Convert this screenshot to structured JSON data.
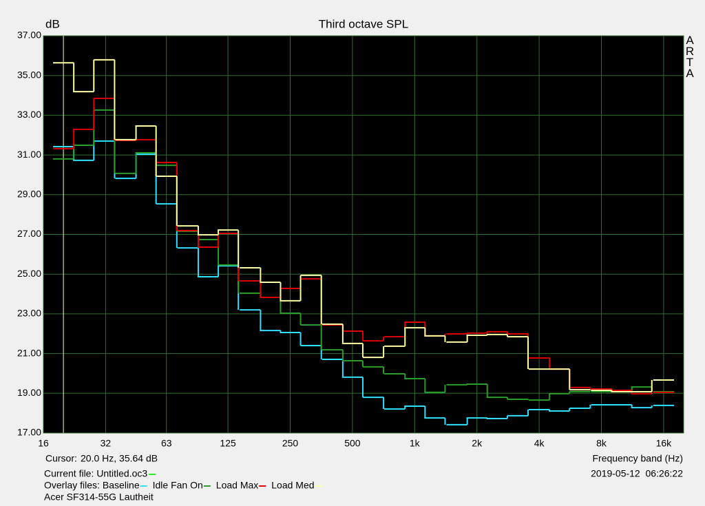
{
  "chart_data": {
    "type": "step",
    "title": "Third octave SPL",
    "y_label": "dB",
    "x_label": "Frequency band (Hz)",
    "side_label": "ARTA",
    "log_x": true,
    "grid": true,
    "xlim": [
      16,
      20000
    ],
    "ylim": [
      17,
      37
    ],
    "xticks": [
      16,
      32,
      63,
      125,
      250,
      500,
      {
        "value": 1000,
        "label": "1k"
      },
      {
        "value": 2000,
        "label": "2k"
      },
      {
        "value": 4000,
        "label": "4k"
      },
      {
        "value": 8000,
        "label": "8k"
      },
      {
        "value": 16000,
        "label": "16k"
      }
    ],
    "yticks": [
      {
        "value": 17,
        "label": "17.00"
      },
      {
        "value": 19,
        "label": "19.00"
      },
      {
        "value": 21,
        "label": "21.00"
      },
      {
        "value": 23,
        "label": "23.00"
      },
      {
        "value": 25,
        "label": "25.00"
      },
      {
        "value": 27,
        "label": "27.00"
      },
      {
        "value": 29,
        "label": "29.00"
      },
      {
        "value": 31,
        "label": "31.00"
      },
      {
        "value": 33,
        "label": "33.00"
      },
      {
        "value": 35,
        "label": "35.00"
      },
      {
        "value": 37,
        "label": "37.00"
      }
    ],
    "x": [
      20,
      25,
      31.5,
      40,
      50,
      63,
      80,
      100,
      125,
      160,
      200,
      250,
      315,
      400,
      500,
      630,
      800,
      1000,
      1250,
      1600,
      2000,
      2500,
      3150,
      4000,
      5000,
      6300,
      8000,
      10000,
      12500,
      16000
    ],
    "series": [
      {
        "name": "Baseline",
        "color": "#2fe0ff",
        "values": [
          31.42,
          30.73,
          31.7,
          29.82,
          31.04,
          28.54,
          26.32,
          24.87,
          25.42,
          23.2,
          22.16,
          22.06,
          21.4,
          20.71,
          19.81,
          18.8,
          18.21,
          18.35,
          17.76,
          17.42,
          17.76,
          17.73,
          17.87,
          18.18,
          18.11,
          18.25,
          18.42,
          18.42,
          18.28,
          18.39
        ]
      },
      {
        "name": "Idle Fan On",
        "color": "#2a9e2a",
        "values": [
          30.8,
          31.49,
          33.26,
          30.07,
          31.11,
          30.48,
          27.16,
          26.74,
          25.46,
          24.04,
          23.83,
          23.03,
          22.44,
          21.19,
          20.64,
          20.33,
          19.98,
          19.74,
          19.05,
          19.43,
          19.46,
          18.8,
          18.7,
          18.66,
          18.98,
          19.08,
          19.08,
          19.08,
          19.32,
          19.08
        ]
      },
      {
        "name": "Load Max",
        "color": "#e00000",
        "values": [
          31.32,
          32.29,
          33.85,
          31.73,
          31.77,
          30.62,
          27.19,
          26.36,
          27.05,
          24.66,
          23.83,
          24.28,
          24.76,
          22.44,
          22.13,
          21.64,
          21.85,
          22.58,
          21.89,
          21.99,
          22.03,
          22.1,
          21.99,
          20.78,
          20.22,
          19.29,
          19.22,
          19.15,
          18.98,
          19.05
        ]
      },
      {
        "name": "Load Med",
        "color": "#ffffa8",
        "values": [
          35.64,
          34.19,
          35.79,
          31.77,
          32.46,
          29.93,
          27.43,
          26.98,
          27.22,
          25.32,
          24.59,
          23.66,
          24.94,
          22.48,
          21.51,
          20.81,
          21.37,
          22.3,
          21.89,
          21.58,
          21.92,
          21.96,
          21.85,
          20.22,
          20.22,
          19.18,
          19.15,
          19.08,
          19.08,
          19.67
        ]
      }
    ],
    "cursor": {
      "label": "Cursor:",
      "text": "20.0 Hz, 35.64 dB",
      "x": 20,
      "color": "#ffffa8"
    },
    "current_file": {
      "label": "Current file: Untitled.oc3",
      "color": "#22ee22"
    },
    "overlay_label": "Overlay files:",
    "timestamp": "2019-05-12  06:26:22",
    "caption": "Acer SF314-55G Lautheit"
  }
}
